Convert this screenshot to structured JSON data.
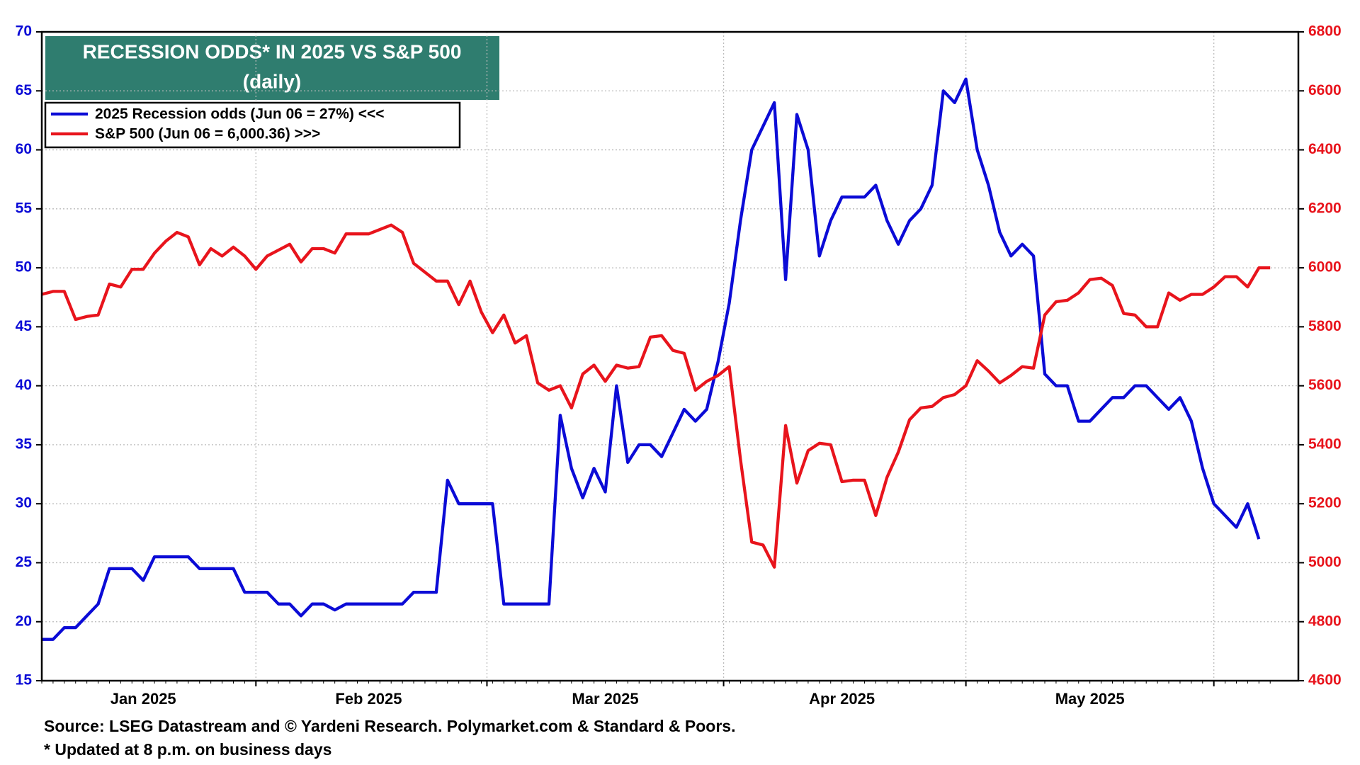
{
  "chart_data": {
    "type": "line",
    "title": "RECESSION ODDS* IN 2025 VS S&P 500",
    "subtitle": "(daily)",
    "source": "Source: LSEG Datastream and © Yardeni Research. Polymarket.com & Standard & Poors.",
    "note": "* Updated at 8 p.m. on business days",
    "categories": [
      null,
      null,
      null,
      null,
      null,
      null,
      null,
      null,
      null,
      "Jan 2025",
      null,
      null,
      null,
      null,
      null,
      null,
      null,
      null,
      null,
      null,
      null,
      null,
      null,
      null,
      null,
      null,
      null,
      null,
      null,
      "Feb 2025",
      null,
      null,
      null,
      null,
      null,
      null,
      null,
      null,
      null,
      null,
      null,
      null,
      null,
      null,
      null,
      null,
      null,
      null,
      null,
      null,
      "Mar 2025",
      null,
      null,
      null,
      null,
      null,
      null,
      null,
      null,
      null,
      null,
      null,
      null,
      null,
      null,
      null,
      null,
      null,
      null,
      null,
      null,
      "Apr 2025",
      null,
      null,
      null,
      null,
      null,
      null,
      null,
      null,
      null,
      null,
      null,
      null,
      null,
      null,
      null,
      null,
      null,
      null,
      null,
      null,
      null,
      "May 2025",
      null,
      null,
      null,
      null,
      null,
      null,
      null,
      null,
      null,
      null,
      null,
      null,
      null,
      null,
      null,
      null
    ],
    "series": [
      {
        "name": "2025 Recession odds (Jun 06 = 27%) <<<",
        "color": "#0b0bd6",
        "axis": "y",
        "values": [
          18.5,
          18.5,
          19.5,
          19.5,
          20.5,
          21.5,
          24.5,
          24.5,
          24.5,
          23.5,
          25.5,
          25.5,
          25.5,
          25.5,
          24.5,
          24.5,
          24.5,
          24.5,
          22.5,
          22.5,
          22.5,
          21.5,
          21.5,
          20.5,
          21.5,
          21.5,
          21,
          21.5,
          21.5,
          21.5,
          21.5,
          21.5,
          21.5,
          22.5,
          22.5,
          22.5,
          32,
          30,
          30,
          30,
          30,
          21.5,
          21.5,
          21.5,
          21.5,
          21.5,
          37.5,
          33,
          30.5,
          33,
          31,
          40,
          33.5,
          35,
          35,
          34,
          36,
          38,
          37,
          38,
          42,
          47,
          54,
          60,
          62,
          64,
          49,
          63,
          60,
          51,
          54,
          56,
          56,
          56,
          57,
          54,
          52,
          54,
          55,
          57,
          65,
          64,
          66,
          60,
          57,
          53,
          51,
          52,
          51,
          41,
          40,
          40,
          37,
          37,
          38,
          39,
          39,
          40,
          40,
          39,
          38,
          39,
          37,
          33,
          30,
          29,
          28,
          30,
          27,
          null
        ]
      },
      {
        "name": "S&P 500 (Jun 06 = 6,000.36) >>>",
        "color": "#e8141c",
        "axis": "y2",
        "values": [
          5910,
          5920,
          5920,
          5825,
          5835,
          5840,
          5945,
          5935,
          5995,
          5995,
          6050,
          6090,
          6120,
          6105,
          6010,
          6065,
          6040,
          6070,
          6040,
          5995,
          6040,
          6060,
          6080,
          6020,
          6065,
          6065,
          6050,
          6115,
          6115,
          6115,
          6130,
          6145,
          6120,
          6015,
          5985,
          5955,
          5955,
          5875,
          5955,
          5850,
          5780,
          5840,
          5745,
          5770,
          5610,
          5585,
          5600,
          5525,
          5640,
          5670,
          5615,
          5670,
          5660,
          5665,
          5765,
          5770,
          5720,
          5710,
          5585,
          5615,
          5635,
          5665,
          5350,
          5070,
          5060,
          4985,
          5465,
          5270,
          5380,
          5405,
          5400,
          5275,
          5280,
          5280,
          5160,
          5290,
          5375,
          5485,
          5525,
          5530,
          5560,
          5570,
          5600,
          5685,
          5650,
          5610,
          5635,
          5665,
          5660,
          5840,
          5885,
          5890,
          5915,
          5960,
          5965,
          5940,
          5845,
          5840,
          5800,
          5800,
          5915,
          5890,
          5910,
          5910,
          5935,
          5970,
          5970,
          5935,
          6000,
          6000
        ]
      }
    ],
    "ylim": [
      15,
      70
    ],
    "yticks": [
      15,
      20,
      25,
      30,
      35,
      40,
      45,
      50,
      55,
      60,
      65,
      70
    ],
    "y2lim": [
      4600,
      6800
    ],
    "y2ticks": [
      4600,
      4800,
      5000,
      5200,
      5400,
      5600,
      5800,
      6000,
      6200,
      6400,
      6600,
      6800
    ],
    "grid": true,
    "legend": "upper left"
  }
}
